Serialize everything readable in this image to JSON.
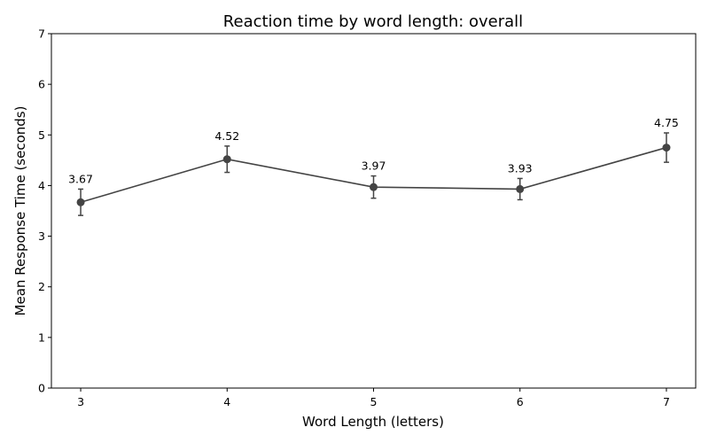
{
  "chart_data": {
    "type": "line",
    "title": "Reaction time by word length: overall",
    "xlabel": "Word Length (letters)",
    "ylabel": "Mean Response Time (seconds)",
    "x": [
      3,
      4,
      5,
      6,
      7
    ],
    "series": [
      {
        "values": [
          3.67,
          4.52,
          3.97,
          3.93,
          4.75
        ],
        "error": [
          0.26,
          0.26,
          0.22,
          0.21,
          0.29
        ]
      }
    ],
    "data_labels": [
      "3.67",
      "4.52",
      "3.97",
      "3.93",
      "4.75"
    ],
    "xticks": [
      "3",
      "4",
      "5",
      "6",
      "7"
    ],
    "yticks": [
      "0",
      "1",
      "2",
      "3",
      "4",
      "5",
      "6",
      "7"
    ],
    "xlim": [
      2.8,
      7.2
    ],
    "ylim": [
      0,
      7
    ],
    "grid": false,
    "legend": "none",
    "color": "#444444"
  }
}
